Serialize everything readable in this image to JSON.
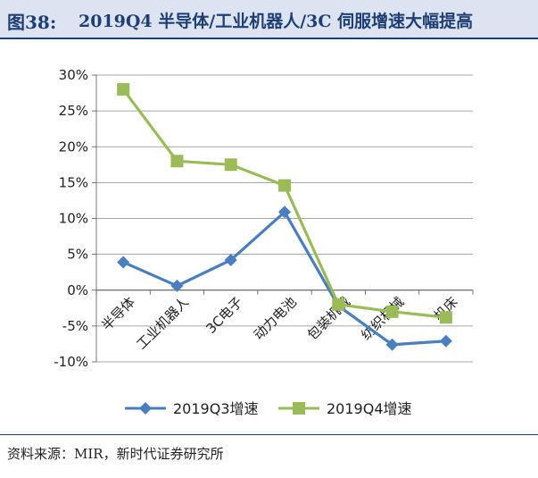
{
  "header": {
    "figure_label": "图38:",
    "title": "2019Q4 半导体/工业机器人/3C 伺服增速大幅提高"
  },
  "footer": {
    "source": "资料来源：MIR，新时代证券研究所"
  },
  "chart_data": {
    "type": "line",
    "title": "",
    "xlabel": "",
    "ylabel": "",
    "categories": [
      "半导体",
      "工业机器人",
      "3C电子",
      "动力电池",
      "包装机械",
      "纺织机械",
      "机床"
    ],
    "series": [
      {
        "name": "2019Q3增速",
        "color": "#4a7ebf",
        "marker": "diamond",
        "values": [
          0.039,
          0.006,
          0.042,
          0.109,
          -0.022,
          -0.076,
          -0.071
        ]
      },
      {
        "name": "2019Q4增速",
        "color": "#9bbb59",
        "marker": "square",
        "values": [
          0.28,
          0.18,
          0.175,
          0.146,
          -0.02,
          -0.03,
          -0.038
        ]
      }
    ],
    "ylim": [
      -0.1,
      0.3
    ],
    "yticks": [
      "-10%",
      "-5%",
      "0%",
      "5%",
      "10%",
      "15%",
      "20%",
      "25%",
      "30%"
    ],
    "grid": true,
    "legend_position": "bottom"
  }
}
